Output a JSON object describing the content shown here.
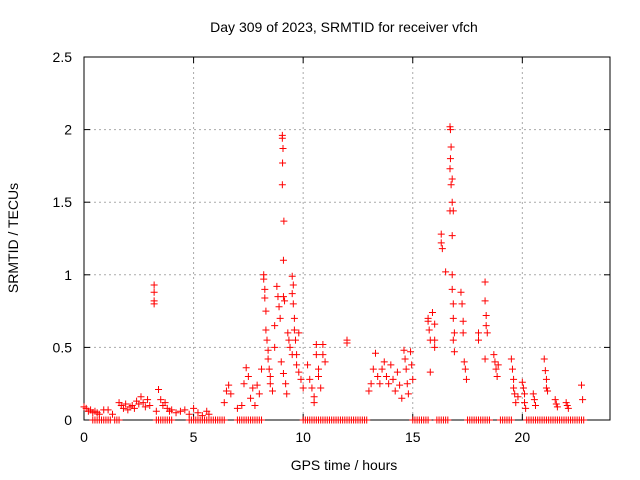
{
  "chart_data": {
    "type": "scatter",
    "title": "Day 309 of 2023, SRMTID for receiver vfch",
    "xlabel": "GPS time / hours",
    "ylabel": "SRMTID / TECUs",
    "xlim": [
      0,
      24
    ],
    "ylim": [
      0,
      2.5
    ],
    "xticks": [
      0,
      5,
      10,
      15,
      20
    ],
    "yticks": [
      0,
      0.5,
      1,
      1.5,
      2,
      2.5
    ],
    "xtick_labels": [
      "0",
      "5",
      "10",
      "15",
      "20"
    ],
    "ytick_labels": [
      "0",
      "0.5",
      "1",
      "1.5",
      "2",
      "2.5"
    ],
    "grid": true,
    "marker": "+",
    "color": "#ff0000",
    "series": [
      {
        "name": "SRMTID",
        "points": [
          [
            0.0,
            0.09
          ],
          [
            0.1,
            0.08
          ],
          [
            0.2,
            0.06
          ],
          [
            0.3,
            0.07
          ],
          [
            0.4,
            0.05
          ],
          [
            0.5,
            0.06
          ],
          [
            0.6,
            0.05
          ],
          [
            0.7,
            0.04
          ],
          [
            0.9,
            0.07
          ],
          [
            1.1,
            0.07
          ],
          [
            1.3,
            0.04
          ],
          [
            1.6,
            0.12
          ],
          [
            1.7,
            0.1
          ],
          [
            1.8,
            0.08
          ],
          [
            1.9,
            0.11
          ],
          [
            2.0,
            0.07
          ],
          [
            2.1,
            0.09
          ],
          [
            2.2,
            0.1
          ],
          [
            2.3,
            0.08
          ],
          [
            2.4,
            0.13
          ],
          [
            2.5,
            0.11
          ],
          [
            2.6,
            0.16
          ],
          [
            2.7,
            0.12
          ],
          [
            2.8,
            0.09
          ],
          [
            2.9,
            0.14
          ],
          [
            3.0,
            0.1
          ],
          [
            3.2,
            0.93
          ],
          [
            3.2,
            0.88
          ],
          [
            3.2,
            0.82
          ],
          [
            3.2,
            0.8
          ],
          [
            3.3,
            0.06
          ],
          [
            3.4,
            0.21
          ],
          [
            3.5,
            0.14
          ],
          [
            3.6,
            0.1
          ],
          [
            3.7,
            0.12
          ],
          [
            3.8,
            0.08
          ],
          [
            3.9,
            0.06
          ],
          [
            4.0,
            0.07
          ],
          [
            4.2,
            0.05
          ],
          [
            4.4,
            0.06
          ],
          [
            4.6,
            0.07
          ],
          [
            4.8,
            0.04
          ],
          [
            5.0,
            0.08
          ],
          [
            5.2,
            0.05
          ],
          [
            5.4,
            0.03
          ],
          [
            5.6,
            0.06
          ],
          [
            5.7,
            0.04
          ],
          [
            6.4,
            0.12
          ],
          [
            6.5,
            0.2
          ],
          [
            6.6,
            0.24
          ],
          [
            6.7,
            0.18
          ],
          [
            7.0,
            0.08
          ],
          [
            7.2,
            0.1
          ],
          [
            7.3,
            0.25
          ],
          [
            7.4,
            0.36
          ],
          [
            7.5,
            0.3
          ],
          [
            7.6,
            0.15
          ],
          [
            7.7,
            0.22
          ],
          [
            7.8,
            0.1
          ],
          [
            7.9,
            0.24
          ],
          [
            8.0,
            0.18
          ],
          [
            8.1,
            0.35
          ],
          [
            8.2,
            1.0
          ],
          [
            8.2,
            0.97
          ],
          [
            8.25,
            0.9
          ],
          [
            8.25,
            0.84
          ],
          [
            8.3,
            0.75
          ],
          [
            8.3,
            0.62
          ],
          [
            8.35,
            0.55
          ],
          [
            8.4,
            0.48
          ],
          [
            8.4,
            0.42
          ],
          [
            8.45,
            0.35
          ],
          [
            8.5,
            0.3
          ],
          [
            8.5,
            0.25
          ],
          [
            8.6,
            0.2
          ],
          [
            8.7,
            0.5
          ],
          [
            8.8,
            0.92
          ],
          [
            8.85,
            0.85
          ],
          [
            8.9,
            0.78
          ],
          [
            8.95,
            0.7
          ],
          [
            8.7,
            0.65
          ],
          [
            9.05,
            1.96
          ],
          [
            9.05,
            1.94
          ],
          [
            9.08,
            1.87
          ],
          [
            9.06,
            1.77
          ],
          [
            9.05,
            1.62
          ],
          [
            9.12,
            1.37
          ],
          [
            9.1,
            1.1
          ],
          [
            9.1,
            0.85
          ],
          [
            9.15,
            0.82
          ],
          [
            9.0,
            0.4
          ],
          [
            9.1,
            0.32
          ],
          [
            9.2,
            0.25
          ],
          [
            9.25,
            0.18
          ],
          [
            9.3,
            0.6
          ],
          [
            9.35,
            0.55
          ],
          [
            9.4,
            0.5
          ],
          [
            9.5,
            0.45
          ],
          [
            9.5,
            0.99
          ],
          [
            9.55,
            0.93
          ],
          [
            9.5,
            0.87
          ],
          [
            9.55,
            0.8
          ],
          [
            9.6,
            0.7
          ],
          [
            9.6,
            0.62
          ],
          [
            9.65,
            0.55
          ],
          [
            9.7,
            0.45
          ],
          [
            9.7,
            0.38
          ],
          [
            9.8,
            0.6
          ],
          [
            9.8,
            0.33
          ],
          [
            9.9,
            0.28
          ],
          [
            10.0,
            0.22
          ],
          [
            10.2,
            0.38
          ],
          [
            10.3,
            0.28
          ],
          [
            10.4,
            0.22
          ],
          [
            10.5,
            0.16
          ],
          [
            10.6,
            0.52
          ],
          [
            10.6,
            0.45
          ],
          [
            10.7,
            0.35
          ],
          [
            10.7,
            0.3
          ],
          [
            10.8,
            0.22
          ],
          [
            10.9,
            0.52
          ],
          [
            10.9,
            0.45
          ],
          [
            11.0,
            0.4
          ],
          [
            10.5,
            0.12
          ],
          [
            12.0,
            0.55
          ],
          [
            12.0,
            0.53
          ],
          [
            13.0,
            0.2
          ],
          [
            13.1,
            0.25
          ],
          [
            13.2,
            0.35
          ],
          [
            13.3,
            0.46
          ],
          [
            13.4,
            0.3
          ],
          [
            13.5,
            0.25
          ],
          [
            13.6,
            0.35
          ],
          [
            13.7,
            0.4
          ],
          [
            13.8,
            0.3
          ],
          [
            13.9,
            0.25
          ],
          [
            14.0,
            0.38
          ],
          [
            14.1,
            0.28
          ],
          [
            14.2,
            0.2
          ],
          [
            14.3,
            0.33
          ],
          [
            14.4,
            0.24
          ],
          [
            14.5,
            0.15
          ],
          [
            14.6,
            0.48
          ],
          [
            14.65,
            0.42
          ],
          [
            14.7,
            0.35
          ],
          [
            14.75,
            0.25
          ],
          [
            14.8,
            0.18
          ],
          [
            14.9,
            0.47
          ],
          [
            14.95,
            0.38
          ],
          [
            15.0,
            0.28
          ],
          [
            15.7,
            0.7
          ],
          [
            15.7,
            0.68
          ],
          [
            15.75,
            0.62
          ],
          [
            15.8,
            0.55
          ],
          [
            15.8,
            0.33
          ],
          [
            15.9,
            0.74
          ],
          [
            16.0,
            0.55
          ],
          [
            16.0,
            0.5
          ],
          [
            16.0,
            0.66
          ],
          [
            16.3,
            1.28
          ],
          [
            16.3,
            1.22
          ],
          [
            16.35,
            1.18
          ],
          [
            16.5,
            1.02
          ],
          [
            16.7,
            2.02
          ],
          [
            16.72,
            2.0
          ],
          [
            16.75,
            1.88
          ],
          [
            16.72,
            1.8
          ],
          [
            16.7,
            1.73
          ],
          [
            16.8,
            1.66
          ],
          [
            16.75,
            1.62
          ],
          [
            16.8,
            1.5
          ],
          [
            16.85,
            1.44
          ],
          [
            16.7,
            1.44
          ],
          [
            16.8,
            1.27
          ],
          [
            16.8,
            1.0
          ],
          [
            16.8,
            0.9
          ],
          [
            16.85,
            0.8
          ],
          [
            16.85,
            0.7
          ],
          [
            16.9,
            0.6
          ],
          [
            16.85,
            0.55
          ],
          [
            16.9,
            0.47
          ],
          [
            17.2,
            0.88
          ],
          [
            17.25,
            0.8
          ],
          [
            17.3,
            0.68
          ],
          [
            17.3,
            0.6
          ],
          [
            17.35,
            0.4
          ],
          [
            17.4,
            0.35
          ],
          [
            17.45,
            0.28
          ],
          [
            18.0,
            0.6
          ],
          [
            18.0,
            0.55
          ],
          [
            18.3,
            0.95
          ],
          [
            18.3,
            0.82
          ],
          [
            18.35,
            0.72
          ],
          [
            18.35,
            0.65
          ],
          [
            18.4,
            0.6
          ],
          [
            18.3,
            0.42
          ],
          [
            18.7,
            0.45
          ],
          [
            18.75,
            0.4
          ],
          [
            18.8,
            0.35
          ],
          [
            18.85,
            0.3
          ],
          [
            18.9,
            0.38
          ],
          [
            19.5,
            0.42
          ],
          [
            19.55,
            0.35
          ],
          [
            19.6,
            0.28
          ],
          [
            19.6,
            0.22
          ],
          [
            19.65,
            0.18
          ],
          [
            19.7,
            0.12
          ],
          [
            19.8,
            0.16
          ],
          [
            20.0,
            0.26
          ],
          [
            20.05,
            0.22
          ],
          [
            20.1,
            0.18
          ],
          [
            20.1,
            0.12
          ],
          [
            20.15,
            0.08
          ],
          [
            20.5,
            0.18
          ],
          [
            20.55,
            0.14
          ],
          [
            20.6,
            0.1
          ],
          [
            21.0,
            0.42
          ],
          [
            21.05,
            0.34
          ],
          [
            21.1,
            0.28
          ],
          [
            21.1,
            0.22
          ],
          [
            21.15,
            0.2
          ],
          [
            21.5,
            0.14
          ],
          [
            21.55,
            0.11
          ],
          [
            21.6,
            0.09
          ],
          [
            22.0,
            0.12
          ],
          [
            22.05,
            0.1
          ],
          [
            22.1,
            0.08
          ],
          [
            22.7,
            0.24
          ],
          [
            22.75,
            0.14
          ]
        ],
        "zeros": [
          [
            0.4,
            1.2
          ],
          [
            1.4,
            1.6
          ],
          [
            3.3,
            4.0
          ],
          [
            4.8,
            6.4
          ],
          [
            7.0,
            8.1
          ],
          [
            10.0,
            12.9
          ],
          [
            15.0,
            15.7
          ],
          [
            16.1,
            16.6
          ],
          [
            17.5,
            18.0
          ],
          [
            18.1,
            18.5
          ],
          [
            19.0,
            19.5
          ],
          [
            20.2,
            22.8
          ]
        ]
      }
    ]
  }
}
